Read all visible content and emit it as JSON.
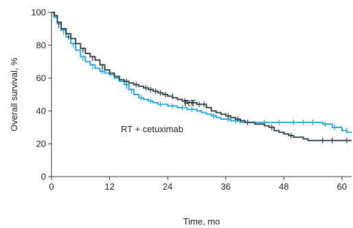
{
  "chart_data": {
    "type": "line",
    "xlabel": "Time, mo",
    "ylabel": "Overall survival, %",
    "xlim": [
      0,
      62
    ],
    "ylim": [
      0,
      100
    ],
    "xticks": [
      0,
      12,
      24,
      36,
      48,
      60
    ],
    "yticks": [
      0,
      20,
      40,
      60,
      80,
      100
    ],
    "grid": false,
    "series": [
      {
        "name": "RT",
        "color": "#37474f",
        "step": true,
        "points": [
          [
            0,
            100
          ],
          [
            0.6,
            98
          ],
          [
            1.2,
            94
          ],
          [
            2,
            90
          ],
          [
            3,
            87
          ],
          [
            4,
            84
          ],
          [
            5,
            81
          ],
          [
            6,
            78
          ],
          [
            7,
            75
          ],
          [
            8,
            73
          ],
          [
            9,
            71
          ],
          [
            10,
            68
          ],
          [
            11,
            65
          ],
          [
            12,
            63
          ],
          [
            13,
            61
          ],
          [
            14,
            59
          ],
          [
            15,
            58
          ],
          [
            16,
            57
          ],
          [
            17,
            56
          ],
          [
            18,
            55
          ],
          [
            19,
            54
          ],
          [
            20,
            53
          ],
          [
            21,
            52
          ],
          [
            22,
            51
          ],
          [
            23,
            50
          ],
          [
            24,
            49
          ],
          [
            25,
            48
          ],
          [
            26,
            47
          ],
          [
            27,
            46
          ],
          [
            28,
            45
          ],
          [
            30,
            44
          ],
          [
            32,
            42
          ],
          [
            33,
            40
          ],
          [
            34,
            39
          ],
          [
            35,
            38
          ],
          [
            36,
            37
          ],
          [
            37,
            36
          ],
          [
            38,
            35
          ],
          [
            39,
            34
          ],
          [
            40,
            33
          ],
          [
            42,
            32
          ],
          [
            44,
            31
          ],
          [
            45,
            30
          ],
          [
            46,
            28
          ],
          [
            47,
            27
          ],
          [
            48,
            26
          ],
          [
            49,
            25
          ],
          [
            50,
            24
          ],
          [
            52,
            23
          ],
          [
            53,
            22
          ],
          [
            62,
            22
          ]
        ],
        "censored": [
          [
            1.5,
            92
          ],
          [
            3.5,
            85
          ],
          [
            6.5,
            77
          ],
          [
            8.5,
            72
          ],
          [
            10.5,
            67
          ],
          [
            15.5,
            58
          ],
          [
            17.5,
            56
          ],
          [
            19.5,
            54
          ],
          [
            20.5,
            53
          ],
          [
            21.5,
            52
          ],
          [
            22.5,
            51
          ],
          [
            23.5,
            50
          ],
          [
            25,
            49
          ],
          [
            27.5,
            46
          ],
          [
            29,
            45
          ],
          [
            30.5,
            44
          ],
          [
            31.5,
            44
          ],
          [
            36.5,
            37
          ],
          [
            38.5,
            35
          ],
          [
            40.5,
            33
          ],
          [
            45.5,
            30
          ],
          [
            49.5,
            25
          ],
          [
            56,
            22
          ],
          [
            58,
            22
          ],
          [
            61,
            22
          ]
        ]
      },
      {
        "name": "RT + cetuximab",
        "color": "#29a9dd",
        "step": true,
        "points": [
          [
            0,
            100
          ],
          [
            0.5,
            97
          ],
          [
            1.2,
            93
          ],
          [
            2,
            89
          ],
          [
            3,
            85
          ],
          [
            4,
            81
          ],
          [
            5,
            77
          ],
          [
            6,
            73
          ],
          [
            7,
            70
          ],
          [
            8,
            68
          ],
          [
            9,
            66
          ],
          [
            10,
            64
          ],
          [
            11,
            63
          ],
          [
            12,
            62
          ],
          [
            13,
            60
          ],
          [
            14,
            58
          ],
          [
            15,
            56
          ],
          [
            16,
            53
          ],
          [
            17,
            50
          ],
          [
            18,
            48
          ],
          [
            19,
            47
          ],
          [
            20,
            46
          ],
          [
            21,
            45
          ],
          [
            22,
            44
          ],
          [
            24,
            43
          ],
          [
            26,
            42
          ],
          [
            28,
            41
          ],
          [
            30,
            40
          ],
          [
            31,
            39
          ],
          [
            32,
            38
          ],
          [
            33,
            37
          ],
          [
            34,
            36
          ],
          [
            35,
            35
          ],
          [
            37,
            34
          ],
          [
            39,
            33
          ],
          [
            56,
            32
          ],
          [
            58,
            30
          ],
          [
            60,
            28
          ],
          [
            61,
            27
          ],
          [
            62,
            27
          ]
        ],
        "censored": [
          [
            2.5,
            88
          ],
          [
            4.5,
            80
          ],
          [
            6.5,
            72
          ],
          [
            8.5,
            67
          ],
          [
            10.5,
            64
          ],
          [
            15.5,
            55
          ],
          [
            16.5,
            52
          ],
          [
            18.5,
            48
          ],
          [
            20.5,
            46
          ],
          [
            22.5,
            44
          ],
          [
            25,
            43
          ],
          [
            27,
            42
          ],
          [
            29,
            41
          ],
          [
            33.5,
            37
          ],
          [
            36.5,
            35
          ],
          [
            38,
            34
          ],
          [
            44,
            33
          ],
          [
            47,
            33
          ],
          [
            50,
            33
          ],
          [
            52,
            33
          ],
          [
            54,
            33
          ],
          [
            56.5,
            32
          ],
          [
            58.5,
            30
          ],
          [
            61,
            28
          ]
        ]
      }
    ]
  }
}
